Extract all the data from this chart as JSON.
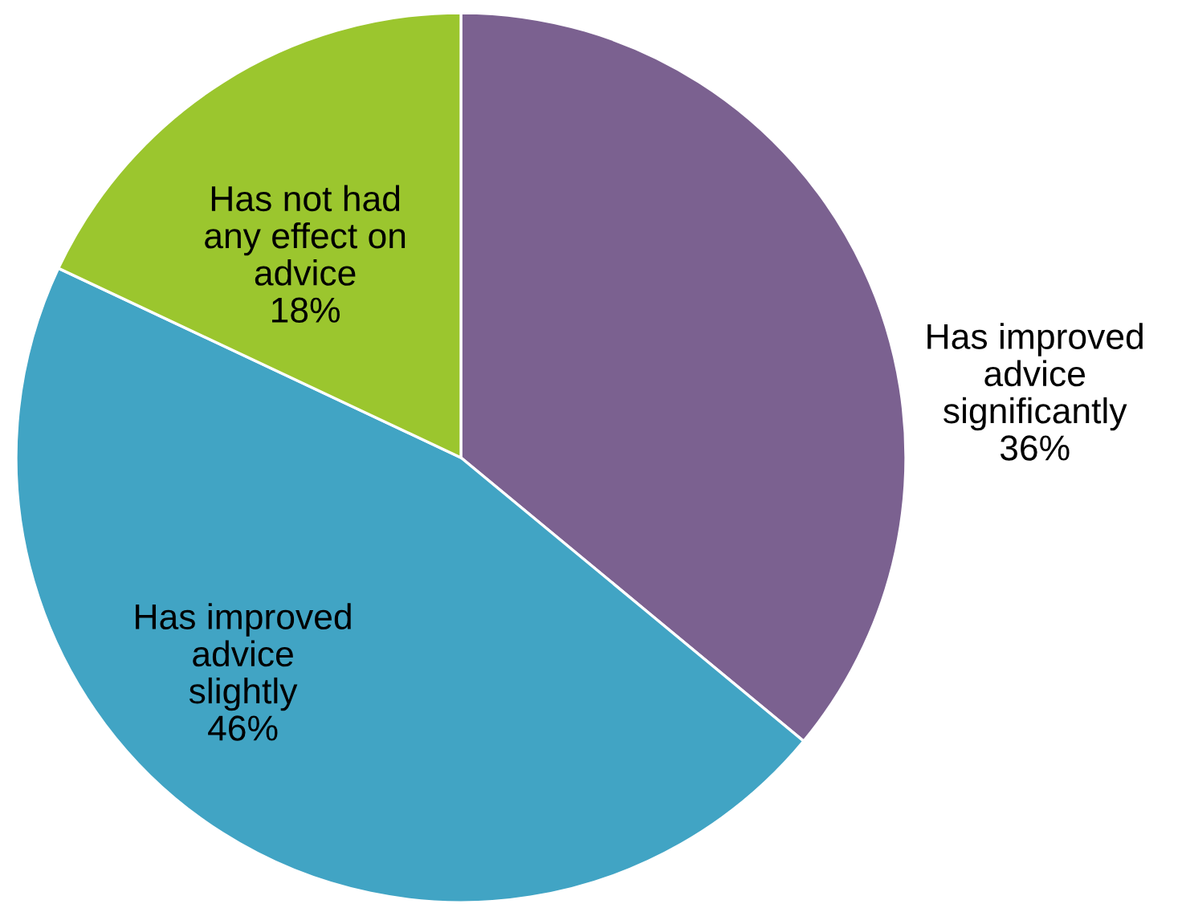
{
  "chart_data": {
    "type": "pie",
    "categories": [
      "Has improved\nadvice\nsignificantly",
      "Has improved\nadvice\nslightly",
      "Has not had\nany effect on\nadvice"
    ],
    "values": [
      36,
      46,
      18
    ],
    "value_labels": [
      "36%",
      "46%",
      "18%"
    ],
    "colors": [
      "#7b6190",
      "#41a4c4",
      "#9bc62e"
    ]
  }
}
